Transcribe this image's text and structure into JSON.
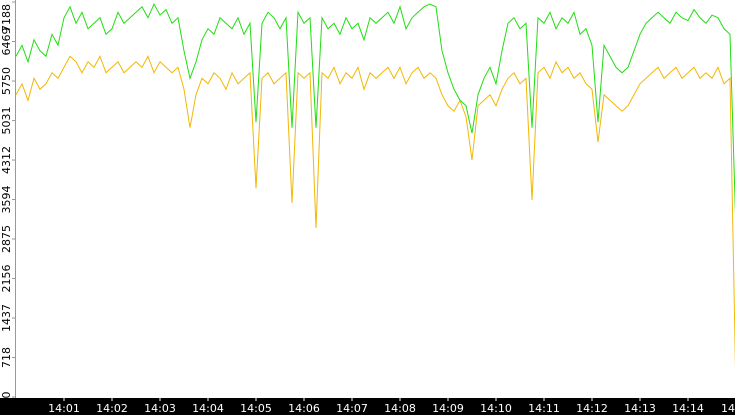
{
  "chart_data": {
    "type": "line",
    "ylim": [
      0,
      7188
    ],
    "yticks": [
      0,
      718,
      1437,
      2156,
      2875,
      3594,
      4312,
      5031,
      5750,
      6469,
      7188
    ],
    "xlim": [
      0,
      15
    ],
    "xticks": [
      {
        "value": 1,
        "label": "14:01"
      },
      {
        "value": 2,
        "label": "14:02"
      },
      {
        "value": 3,
        "label": "14:03"
      },
      {
        "value": 4,
        "label": "14:04"
      },
      {
        "value": 5,
        "label": "14:05"
      },
      {
        "value": 6,
        "label": "14:06"
      },
      {
        "value": 7,
        "label": "14:07"
      },
      {
        "value": 8,
        "label": "14:08"
      },
      {
        "value": 9,
        "label": "14:09"
      },
      {
        "value": 10,
        "label": "14:10"
      },
      {
        "value": 11,
        "label": "14:11"
      },
      {
        "value": 12,
        "label": "14:12"
      },
      {
        "value": 13,
        "label": "14:13"
      },
      {
        "value": 14,
        "label": "14:14"
      },
      {
        "value": 15,
        "label": "14"
      }
    ],
    "series": [
      {
        "color": "#f2b705",
        "values": [
          5500,
          5700,
          5400,
          5800,
          5600,
          5700,
          5900,
          5800,
          6000,
          6200,
          6100,
          5900,
          6100,
          6000,
          6200,
          5900,
          6000,
          6100,
          5900,
          6000,
          6100,
          6000,
          6200,
          5900,
          6100,
          6000,
          5900,
          6000,
          5600,
          4900,
          5500,
          5800,
          5700,
          5900,
          5800,
          5600,
          5900,
          5700,
          5800,
          5900,
          3800,
          5800,
          5900,
          5700,
          5800,
          5900,
          3530,
          5900,
          5800,
          5900,
          3075,
          5900,
          5800,
          6000,
          5700,
          5900,
          5800,
          6000,
          5600,
          5900,
          5800,
          5900,
          6000,
          5800,
          6000,
          5700,
          5900,
          6000,
          5800,
          5900,
          5800,
          5500,
          5300,
          5200,
          5400,
          5100,
          4313,
          5300,
          5400,
          5500,
          5300,
          5600,
          5800,
          5900,
          5700,
          5800,
          3585,
          5900,
          6000,
          5800,
          6100,
          5900,
          6000,
          5800,
          5900,
          5700,
          5600,
          4640,
          5500,
          5400,
          5300,
          5200,
          5300,
          5500,
          5700,
          5800,
          5900,
          6000,
          5800,
          5900,
          6000,
          5800,
          5900,
          6000,
          5800,
          5900,
          5800,
          6000,
          5700,
          5800,
          40
        ]
      },
      {
        "color": "#22dd11",
        "values": [
          6200,
          6400,
          6100,
          6500,
          6300,
          6200,
          6600,
          6400,
          6900,
          7100,
          6800,
          7000,
          6700,
          6800,
          6900,
          6600,
          6700,
          7000,
          6800,
          6900,
          7000,
          7100,
          6900,
          7150,
          6950,
          7050,
          6800,
          6900,
          6300,
          5800,
          6100,
          6500,
          6700,
          6600,
          6900,
          6800,
          6700,
          6900,
          6600,
          6800,
          5000,
          6800,
          7000,
          6900,
          6700,
          6900,
          4900,
          7000,
          6800,
          6900,
          4900,
          6900,
          6700,
          6800,
          6600,
          6900,
          6700,
          6800,
          6500,
          6900,
          6800,
          6900,
          7000,
          6800,
          7100,
          6700,
          6900,
          7000,
          7100,
          7150,
          7100,
          6300,
          5900,
          5600,
          5400,
          5300,
          4800,
          5500,
          5800,
          6000,
          5700,
          6300,
          6800,
          6900,
          6700,
          6800,
          4900,
          6900,
          6800,
          7000,
          6700,
          6900,
          6800,
          7000,
          6600,
          6700,
          6400,
          5000,
          6400,
          6200,
          6000,
          5900,
          6000,
          6300,
          6600,
          6800,
          6900,
          7000,
          6900,
          6800,
          7000,
          6900,
          6850,
          7050,
          6900,
          6800,
          6950,
          6900,
          6700,
          6600,
          3000
        ]
      }
    ]
  }
}
